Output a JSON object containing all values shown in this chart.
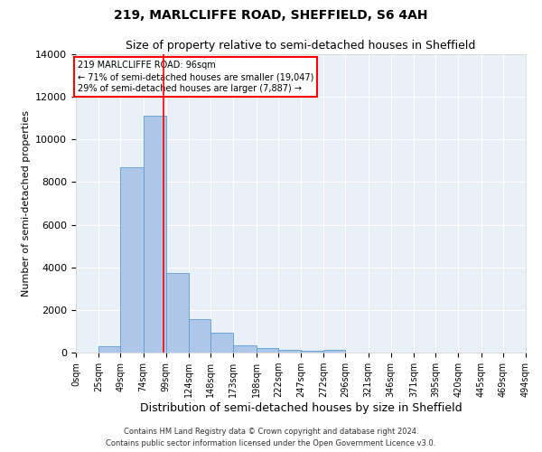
{
  "title1": "219, MARLCLIFFE ROAD, SHEFFIELD, S6 4AH",
  "title2": "Size of property relative to semi-detached houses in Sheffield",
  "xlabel": "Distribution of semi-detached houses by size in Sheffield",
  "ylabel": "Number of semi-detached properties",
  "footnote1": "Contains HM Land Registry data © Crown copyright and database right 2024.",
  "footnote2": "Contains public sector information licensed under the Open Government Licence v3.0.",
  "bin_edges": [
    0,
    25,
    49,
    74,
    99,
    124,
    148,
    173,
    198,
    222,
    247,
    272,
    296,
    321,
    346,
    371,
    395,
    420,
    445,
    469,
    494
  ],
  "bin_labels": [
    "0sqm",
    "25sqm",
    "49sqm",
    "74sqm",
    "99sqm",
    "124sqm",
    "148sqm",
    "173sqm",
    "198sqm",
    "222sqm",
    "247sqm",
    "272sqm",
    "296sqm",
    "321sqm",
    "346sqm",
    "371sqm",
    "395sqm",
    "420sqm",
    "445sqm",
    "469sqm",
    "494sqm"
  ],
  "counts": [
    0,
    300,
    8700,
    11100,
    3750,
    1550,
    950,
    350,
    210,
    130,
    80,
    130,
    0,
    0,
    0,
    0,
    0,
    0,
    0,
    0
  ],
  "bar_color": "#aec6e8",
  "bar_edge_color": "#5a9fd4",
  "property_size": 96,
  "vline_color": "red",
  "annotation_text": "219 MARLCLIFFE ROAD: 96sqm\n← 71% of semi-detached houses are smaller (19,047)\n29% of semi-detached houses are larger (7,887) →",
  "annotation_box_color": "white",
  "annotation_box_edge": "red",
  "ylim": [
    0,
    14000
  ],
  "yticks": [
    0,
    2000,
    4000,
    6000,
    8000,
    10000,
    12000,
    14000
  ],
  "background_color": "#eaf0f8",
  "grid_color": "white",
  "title1_fontsize": 10,
  "title2_fontsize": 9,
  "xlabel_fontsize": 9,
  "ylabel_fontsize": 8
}
